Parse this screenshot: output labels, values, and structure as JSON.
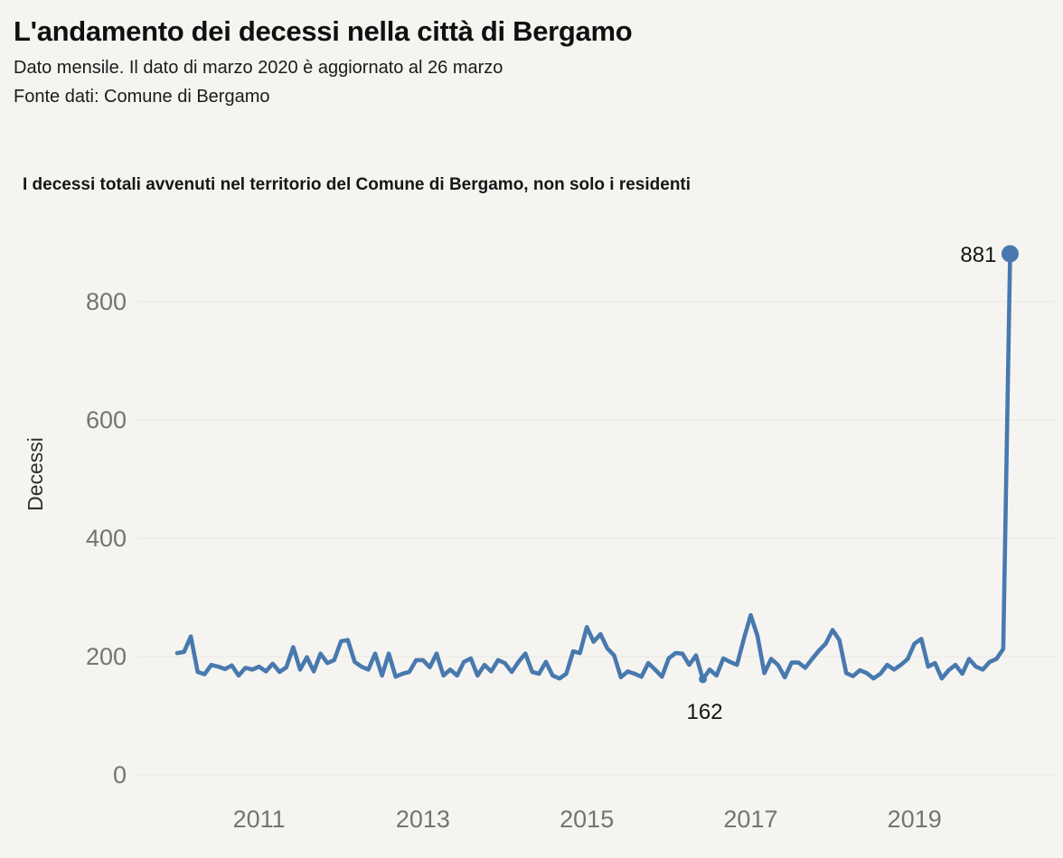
{
  "header": {
    "title": "L'andamento dei decessi nella città di Bergamo",
    "subtitle": "Dato mensile. Il dato di marzo 2020 è aggiornato al 26 marzo",
    "source": "Fonte dati: Comune di Bergamo"
  },
  "chart_note": "I decessi totali avvenuti nel territorio del Comune di Bergamo, non solo i residenti",
  "colors": {
    "background": "#f5f4f1",
    "line": "#4879ae",
    "grid": "#e9e8e4",
    "tick_text": "#757470",
    "annotation_text": "#141414"
  },
  "chart_data": {
    "type": "line",
    "title": "I decessi totali avvenuti nel territorio del Comune di Bergamo, non solo i residenti",
    "xlabel": "",
    "ylabel": "Decessi",
    "x_start_month": "2010-01",
    "x_end_month": "2020-03",
    "ylim": [
      0,
      900
    ],
    "y_ticks": [
      0,
      200,
      400,
      600,
      800
    ],
    "x_ticks": [
      {
        "label": "2011",
        "month_index": 12
      },
      {
        "label": "2013",
        "month_index": 36
      },
      {
        "label": "2015",
        "month_index": 60
      },
      {
        "label": "2017",
        "month_index": 84
      },
      {
        "label": "2019",
        "month_index": 108
      }
    ],
    "grid": true,
    "legend": "none",
    "series": [
      {
        "name": "Decessi",
        "color": "#4879ae",
        "values": [
          206,
          208,
          234,
          174,
          170,
          186,
          183,
          179,
          185,
          168,
          181,
          178,
          183,
          175,
          188,
          174,
          182,
          216,
          178,
          199,
          175,
          205,
          189,
          194,
          226,
          228,
          191,
          183,
          178,
          205,
          168,
          205,
          166,
          171,
          174,
          194,
          194,
          182,
          205,
          168,
          178,
          168,
          191,
          197,
          168,
          186,
          175,
          194,
          189,
          174,
          191,
          205,
          174,
          171,
          191,
          168,
          163,
          171,
          209,
          206,
          250,
          225,
          238,
          214,
          202,
          165,
          175,
          171,
          166,
          189,
          178,
          166,
          197,
          206,
          205,
          186,
          202,
          162,
          178,
          168,
          197,
          191,
          186,
          230,
          270,
          235,
          172,
          196,
          186,
          165,
          190,
          190,
          181,
          196,
          210,
          222,
          245,
          228,
          172,
          167,
          177,
          172,
          163,
          171,
          186,
          178,
          186,
          196,
          222,
          230,
          183,
          189,
          163,
          177,
          186,
          171,
          196,
          183,
          178,
          191,
          196,
          213,
          881
        ]
      }
    ],
    "annotations": [
      {
        "label": "881",
        "month_index": 122,
        "value": 881,
        "dot_radius": 9.5,
        "placement": "left"
      },
      {
        "label": "162",
        "month_index": 77,
        "value": 162,
        "dot_radius": 4.5,
        "placement": "below"
      }
    ]
  }
}
